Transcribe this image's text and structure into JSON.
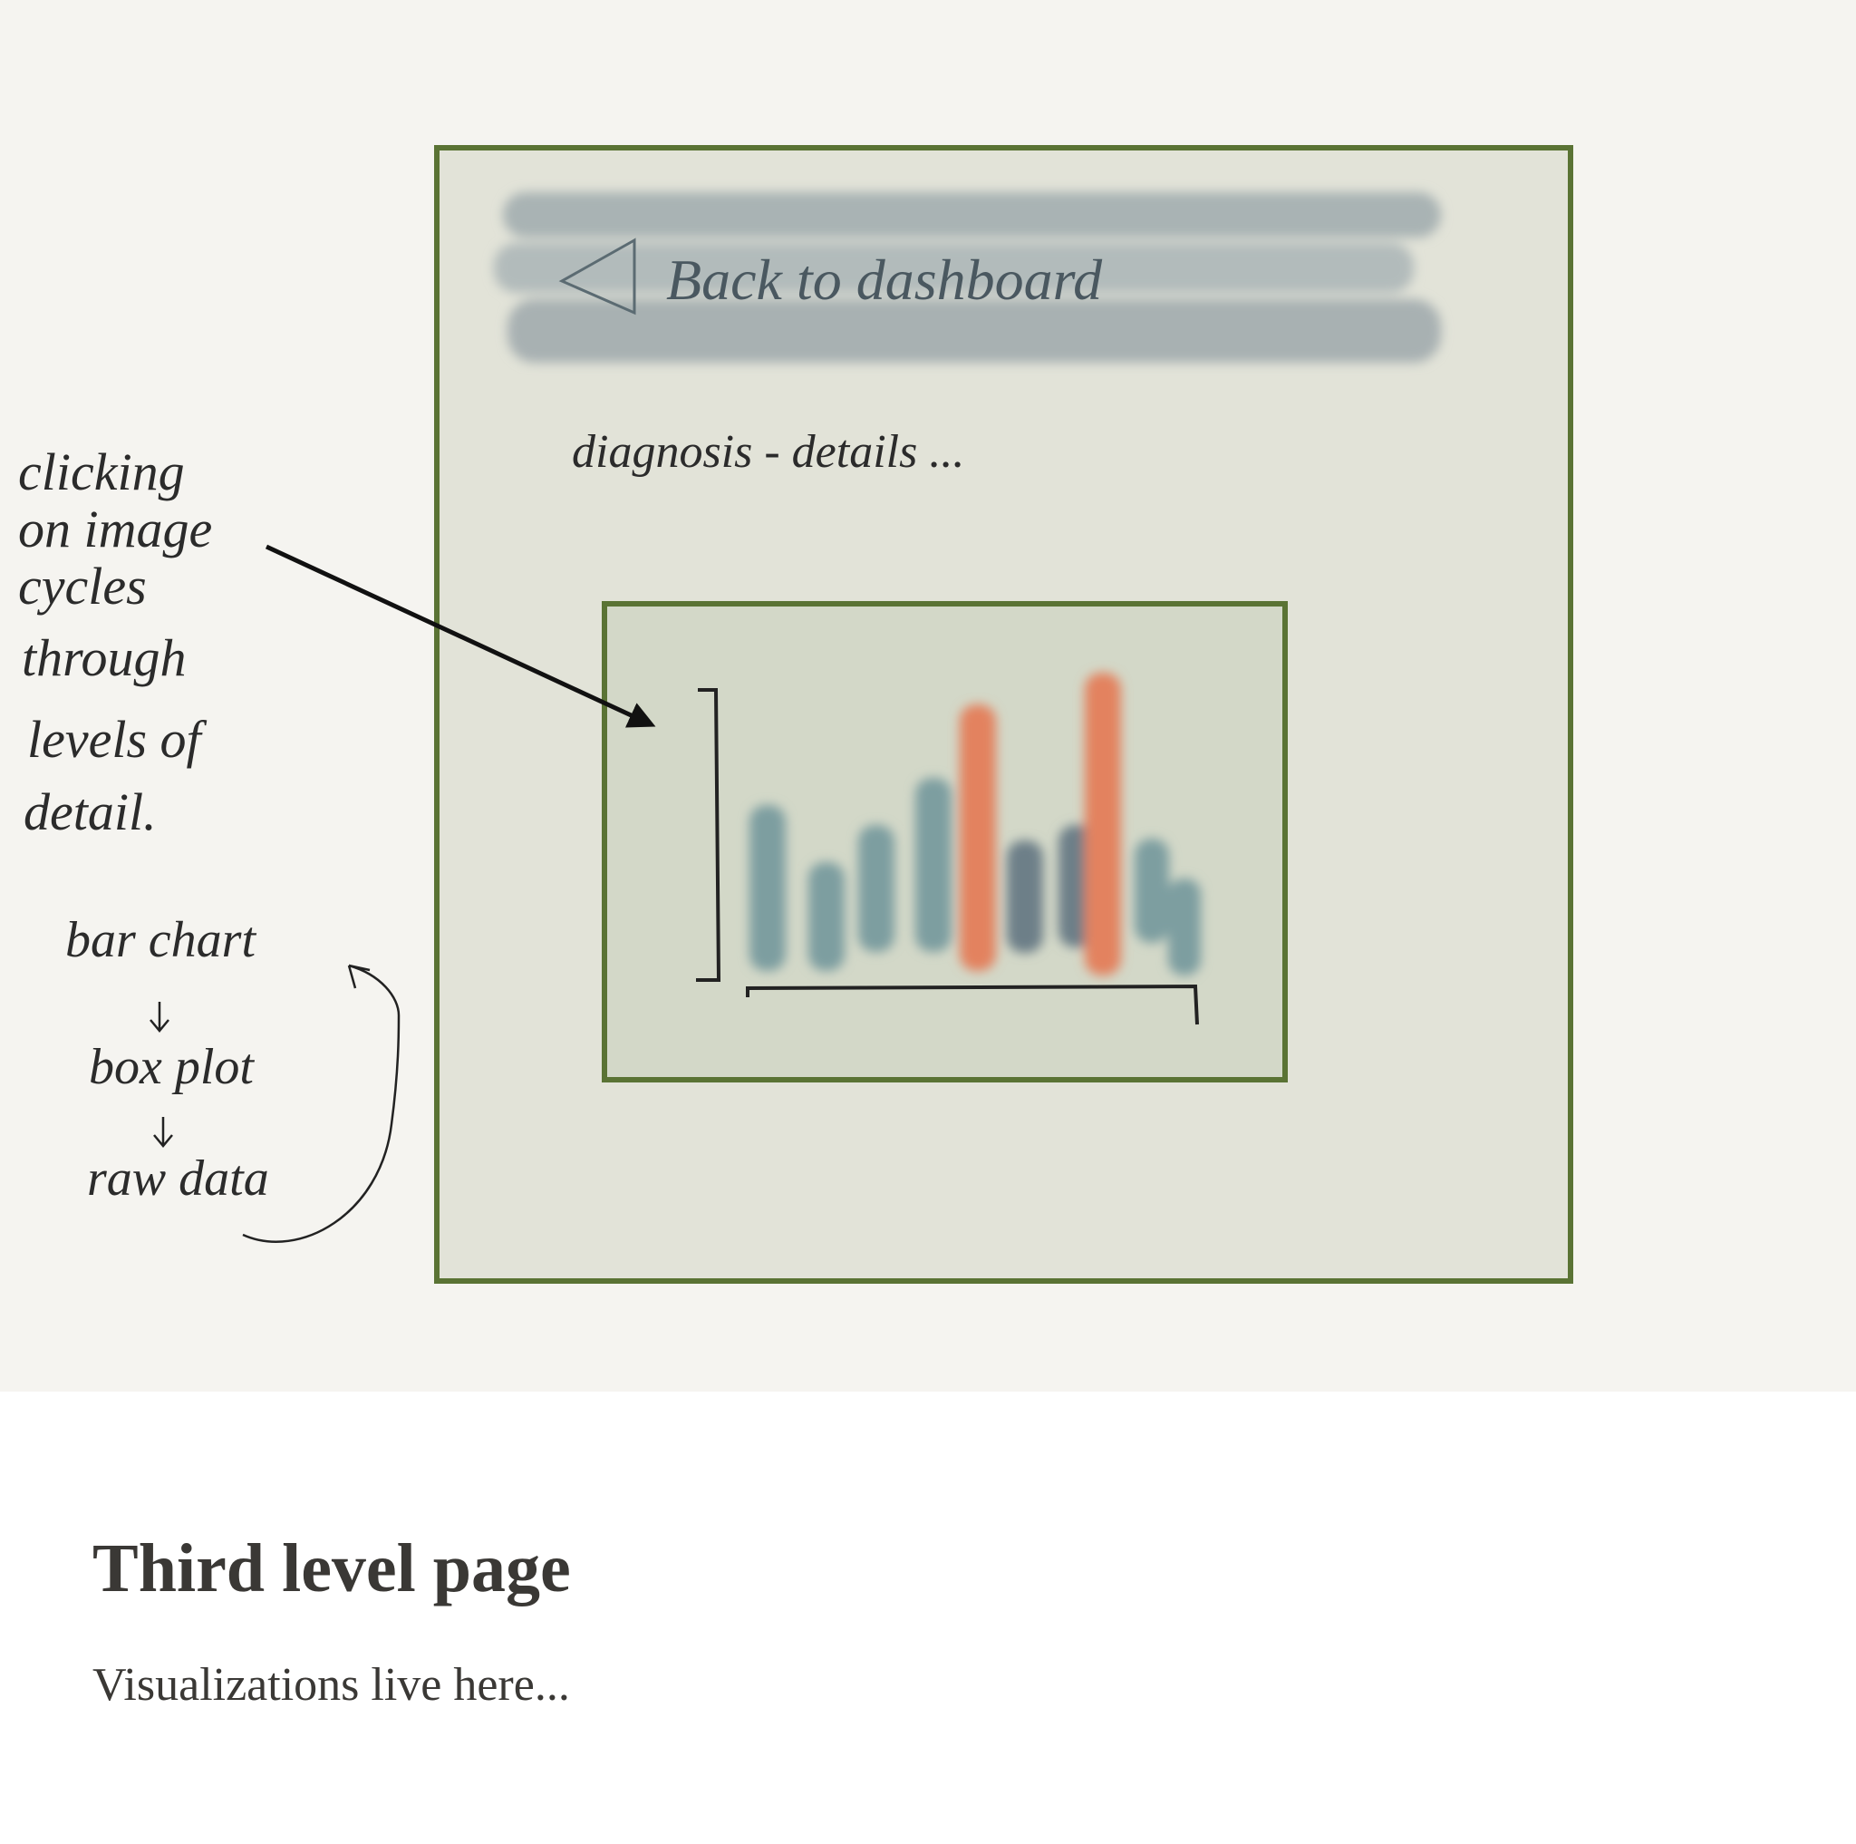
{
  "sketch": {
    "back_link": "Back to dashboard",
    "heading": "diagnosis - details ...",
    "note": [
      "clicking",
      "on image",
      "cycles",
      "through",
      "levels of",
      "detail."
    ],
    "flow": [
      "bar chart",
      "box plot",
      "raw data"
    ]
  },
  "caption": {
    "title": "Third level page",
    "subtitle": "Visualizations live here..."
  }
}
